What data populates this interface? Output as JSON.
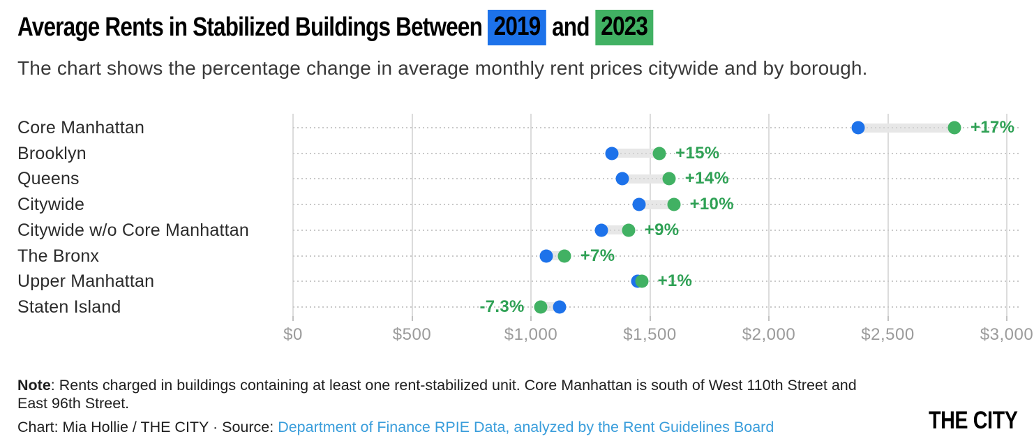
{
  "title": {
    "prefix": "Average Rents in Stabilized Buildings Between",
    "year_start": "2019",
    "conjunction": "and",
    "year_end": "2023"
  },
  "subtitle": "The chart shows the percentage change in average monthly rent prices citywide and by borough.",
  "colors": {
    "blue": "#1d72ea",
    "green": "#41b163",
    "value_label_green": "#2fa155",
    "link_blue": "#399ddb"
  },
  "chart_data": {
    "type": "dumbbell",
    "series": [
      {
        "name": "2019",
        "color_key": "blue"
      },
      {
        "name": "2023",
        "color_key": "green"
      }
    ],
    "rows": [
      {
        "label": "Core Manhattan",
        "start": 2375,
        "end": 2780,
        "change": "+17%",
        "label_side": "right"
      },
      {
        "label": "Brooklyn",
        "start": 1340,
        "end": 1540,
        "change": "+15%",
        "label_side": "right"
      },
      {
        "label": "Queens",
        "start": 1385,
        "end": 1580,
        "change": "+14%",
        "label_side": "right"
      },
      {
        "label": "Citywide",
        "start": 1455,
        "end": 1600,
        "change": "+10%",
        "label_side": "right"
      },
      {
        "label": "Citywide w/o Core Manhattan",
        "start": 1295,
        "end": 1410,
        "change": "+9%",
        "label_side": "right"
      },
      {
        "label": "The Bronx",
        "start": 1065,
        "end": 1140,
        "change": "+7%",
        "label_side": "right"
      },
      {
        "label": "Upper Manhattan",
        "start": 1450,
        "end": 1465,
        "change": "+1%",
        "label_side": "right"
      },
      {
        "label": "Staten Island",
        "start": 1120,
        "end": 1040,
        "change": "-7.3%",
        "label_side": "left"
      }
    ],
    "x_axis": {
      "min": 0,
      "max": 3000,
      "tick_values": [
        0,
        500,
        1000,
        1500,
        2000,
        2500,
        3000
      ],
      "tick_labels": [
        "$0",
        "$500",
        "$1,000",
        "$1,500",
        "$2,000",
        "$2,500",
        "$3,000"
      ]
    },
    "grid": "on",
    "legend_position": "in-title"
  },
  "note": {
    "label": "Note",
    "text": ": Rents charged in buildings containing at least one rent-stabilized unit. Core Manhattan is south of West 110th Street and East 96th Street."
  },
  "credit": {
    "prefix": "Chart: Mia Hollie / THE CITY · Source: ",
    "link": "Department of Finance RPIE Data, analyzed by the Rent Guidelines Board"
  },
  "logo": "THE CITY"
}
